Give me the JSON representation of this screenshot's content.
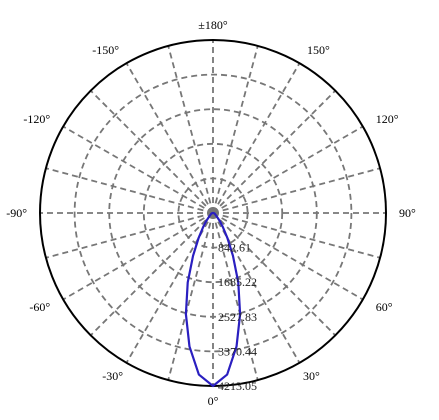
{
  "chart_data": {
    "type": "polar",
    "title": "",
    "colors": {
      "curve": "#2a1fc0",
      "grid": "#777777",
      "outline": "#000000"
    },
    "grid": true,
    "radial_max": 4213.05,
    "radial_ticks": [
      {
        "value": 842.61,
        "label": "842.61"
      },
      {
        "value": 1685.22,
        "label": "1685.22"
      },
      {
        "value": 2527.83,
        "label": "2527.83"
      },
      {
        "value": 3370.44,
        "label": "3370.44"
      },
      {
        "value": 4213.05,
        "label": "4213.05"
      }
    ],
    "angle_spokes_deg": [
      0,
      15,
      30,
      45,
      60,
      75,
      90,
      105,
      120,
      135,
      150,
      165,
      180,
      -15,
      -30,
      -45,
      -60,
      -75,
      -90,
      -105,
      -120,
      -135,
      -150,
      -165
    ],
    "angle_labels": [
      {
        "deg": 0,
        "label": "0°"
      },
      {
        "deg": 30,
        "label": "30°"
      },
      {
        "deg": 60,
        "label": "60°"
      },
      {
        "deg": 90,
        "label": "90°"
      },
      {
        "deg": 120,
        "label": "120°"
      },
      {
        "deg": 150,
        "label": "150°"
      },
      {
        "deg": 180,
        "label": "±180°"
      },
      {
        "deg": -150,
        "label": "-150°"
      },
      {
        "deg": -120,
        "label": "-120°"
      },
      {
        "deg": -90,
        "label": "-90°"
      },
      {
        "deg": -60,
        "label": "-60°"
      },
      {
        "deg": -30,
        "label": "-30°"
      }
    ],
    "series": [
      {
        "angles_deg": [
          -90,
          -80,
          -70,
          -60,
          -50,
          -45,
          -40,
          -35,
          -30,
          -25,
          -20,
          -15,
          -10,
          -5,
          0,
          5,
          10,
          15,
          20,
          25,
          30,
          35,
          40,
          45,
          50,
          60,
          70,
          80,
          90
        ],
        "values": [
          0,
          25,
          45,
          60,
          100,
          150,
          260,
          420,
          700,
          1150,
          1800,
          2550,
          3300,
          3950,
          4213,
          3950,
          3300,
          2550,
          1800,
          1150,
          700,
          420,
          260,
          150,
          100,
          60,
          45,
          25,
          0
        ]
      }
    ]
  }
}
